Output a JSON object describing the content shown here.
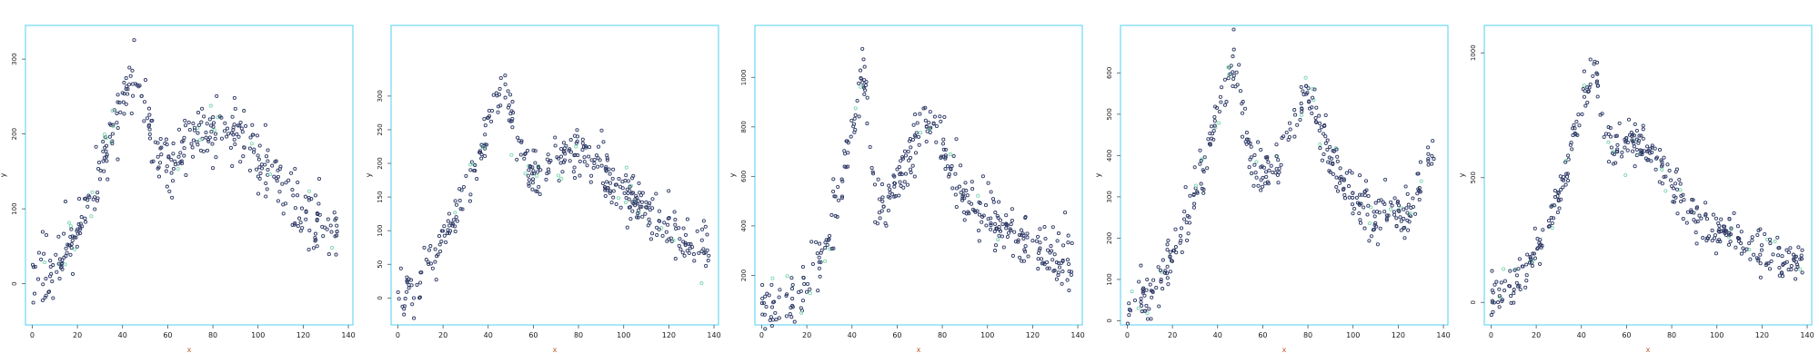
{
  "style": {
    "frame_color": "#4fd2f2",
    "point_color": "#2e3a66",
    "highlight_color": "#7fd6b0",
    "tick_label_color": "#1a1a1a",
    "axis_label_color": "#c0562a"
  },
  "chart_data": [
    {
      "type": "scatter",
      "xlabel": "x",
      "ylabel": "y",
      "xlim": [
        -3,
        142
      ],
      "ylim": [
        -55,
        345
      ],
      "xticks": [
        0,
        20,
        40,
        60,
        80,
        100,
        120,
        140
      ],
      "yticks": [
        0,
        100,
        200,
        300
      ],
      "ytick_labels": [
        "0",
        "100",
        "200",
        "300"
      ],
      "anchors": [
        [
          0,
          2
        ],
        [
          10,
          25
        ],
        [
          20,
          65
        ],
        [
          30,
          150
        ],
        [
          40,
          240
        ],
        [
          45,
          280
        ],
        [
          50,
          240
        ],
        [
          55,
          170
        ],
        [
          60,
          150
        ],
        [
          70,
          190
        ],
        [
          80,
          210
        ],
        [
          90,
          200
        ],
        [
          100,
          170
        ],
        [
          110,
          130
        ],
        [
          120,
          90
        ],
        [
          130,
          75
        ],
        [
          135,
          70
        ]
      ],
      "noise": 20,
      "n_points": 400
    },
    {
      "type": "scatter",
      "xlabel": "x",
      "ylabel": "y",
      "xlim": [
        -3,
        142
      ],
      "ylim": [
        -40,
        405
      ],
      "xticks": [
        0,
        20,
        40,
        60,
        80,
        100,
        120,
        140
      ],
      "yticks": [
        0,
        50,
        100,
        150,
        200,
        250,
        300
      ],
      "ytick_labels": [
        "0",
        "50",
        "100",
        "150",
        "200",
        "250",
        "300"
      ],
      "anchors": [
        [
          0,
          -10
        ],
        [
          10,
          30
        ],
        [
          20,
          85
        ],
        [
          30,
          160
        ],
        [
          40,
          250
        ],
        [
          47,
          325
        ],
        [
          52,
          245
        ],
        [
          60,
          180
        ],
        [
          70,
          205
        ],
        [
          82,
          215
        ],
        [
          90,
          190
        ],
        [
          100,
          160
        ],
        [
          110,
          130
        ],
        [
          120,
          100
        ],
        [
          130,
          80
        ],
        [
          138,
          70
        ]
      ],
      "noise": 18,
      "n_points": 400
    },
    {
      "type": "scatter",
      "xlabel": "x",
      "ylabel": "y",
      "xlim": [
        -3,
        142
      ],
      "ylim": [
        0,
        1210
      ],
      "xticks": [
        0,
        20,
        40,
        60,
        80,
        100,
        120,
        140
      ],
      "yticks": [
        200,
        400,
        600,
        800,
        1000
      ],
      "ytick_labels": [
        "200",
        "400",
        "600",
        "800",
        "1000"
      ],
      "anchors": [
        [
          0,
          70
        ],
        [
          10,
          80
        ],
        [
          20,
          120
        ],
        [
          30,
          350
        ],
        [
          40,
          780
        ],
        [
          45,
          1030
        ],
        [
          50,
          520
        ],
        [
          55,
          500
        ],
        [
          60,
          560
        ],
        [
          70,
          780
        ],
        [
          75,
          810
        ],
        [
          82,
          660
        ],
        [
          90,
          500
        ],
        [
          100,
          450
        ],
        [
          110,
          380
        ],
        [
          120,
          320
        ],
        [
          130,
          260
        ],
        [
          138,
          260
        ]
      ],
      "noise": 55,
      "n_points": 400
    },
    {
      "type": "scatter",
      "xlabel": "x",
      "ylabel": "y",
      "xlim": [
        -3,
        142
      ],
      "ylim": [
        -10,
        715
      ],
      "xticks": [
        0,
        20,
        40,
        60,
        80,
        100,
        120,
        140
      ],
      "yticks": [
        0,
        100,
        200,
        300,
        400,
        500,
        600
      ],
      "ytick_labels": [
        "0",
        "100",
        "200",
        "300",
        "400",
        "500",
        "600"
      ],
      "anchors": [
        [
          0,
          35
        ],
        [
          10,
          70
        ],
        [
          20,
          150
        ],
        [
          30,
          300
        ],
        [
          40,
          500
        ],
        [
          47,
          610
        ],
        [
          55,
          400
        ],
        [
          60,
          350
        ],
        [
          70,
          420
        ],
        [
          80,
          560
        ],
        [
          85,
          480
        ],
        [
          95,
          330
        ],
        [
          110,
          250
        ],
        [
          115,
          260
        ],
        [
          125,
          250
        ],
        [
          132,
          380
        ],
        [
          137,
          410
        ]
      ],
      "noise": 30,
      "n_points": 400
    },
    {
      "type": "scatter",
      "xlabel": "x",
      "ylabel": "y",
      "xlim": [
        -3,
        142
      ],
      "ylim": [
        -90,
        1110
      ],
      "xticks": [
        0,
        20,
        40,
        60,
        80,
        100,
        120,
        140
      ],
      "yticks": [
        0,
        500,
        1000
      ],
      "ytick_labels": [
        "0",
        "500",
        "1000"
      ],
      "anchors": [
        [
          0,
          30
        ],
        [
          10,
          80
        ],
        [
          20,
          200
        ],
        [
          30,
          400
        ],
        [
          40,
          780
        ],
        [
          46,
          960
        ],
        [
          50,
          650
        ],
        [
          55,
          600
        ],
        [
          62,
          640
        ],
        [
          70,
          640
        ],
        [
          80,
          480
        ],
        [
          90,
          350
        ],
        [
          100,
          300
        ],
        [
          110,
          250
        ],
        [
          120,
          200
        ],
        [
          130,
          170
        ],
        [
          138,
          170
        ]
      ],
      "noise": 40,
      "n_points": 400
    }
  ]
}
